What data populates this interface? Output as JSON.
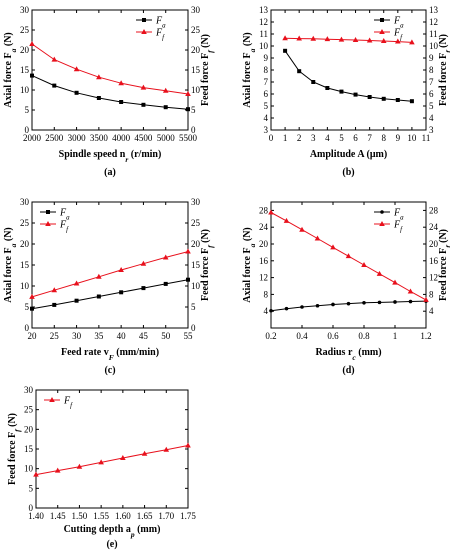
{
  "chart_data": [
    {
      "type": "line",
      "panel_label": "(a)",
      "xlabel": "Spindle speed n",
      "xlabel_sub": "r",
      "xlabel_unit": " (r/min)",
      "ylabel_left": "Axial force F",
      "ylabel_left_sub": "a",
      "ylabel_left_unit": " (N)",
      "ylabel_right": "Feed force F",
      "ylabel_right_sub": "f",
      "ylabel_right_unit": " (N)",
      "xlim": [
        2000,
        5500
      ],
      "xticks": [
        2000,
        2500,
        3000,
        3500,
        4000,
        4500,
        5000,
        5500
      ],
      "ylim_left": [
        0,
        30
      ],
      "yticks_left": [
        0,
        5,
        10,
        15,
        20,
        25,
        30
      ],
      "ylim_right": [
        0,
        30
      ],
      "yticks_right": [
        0,
        5,
        10,
        15,
        20,
        25,
        30
      ],
      "legend_position": "top-right",
      "series": [
        {
          "name": "F",
          "sub": "a",
          "color": "#000000",
          "marker": "square",
          "axis": "left",
          "x": [
            2000,
            2500,
            3000,
            3500,
            4000,
            4500,
            5000,
            5500
          ],
          "y": [
            13.6,
            11.1,
            9.3,
            8.0,
            7.0,
            6.3,
            5.7,
            5.2
          ]
        },
        {
          "name": "F",
          "sub": "f",
          "color": "#e8101c",
          "marker": "triangle",
          "axis": "right",
          "x": [
            2000,
            2500,
            3000,
            3500,
            4000,
            4500,
            5000,
            5500
          ],
          "y": [
            21.5,
            17.6,
            15.2,
            13.2,
            11.7,
            10.6,
            9.8,
            9.0
          ]
        }
      ]
    },
    {
      "type": "line",
      "panel_label": "(b)",
      "xlabel": "Amplitude A",
      "xlabel_sub": "",
      "xlabel_unit": " (μm)",
      "ylabel_left": "Axial force F",
      "ylabel_left_sub": "a",
      "ylabel_left_unit": " (N)",
      "ylabel_right": "Feed force F",
      "ylabel_right_sub": "f",
      "ylabel_right_unit": " (N)",
      "xlim": [
        0,
        11
      ],
      "xticks": [
        0,
        1,
        2,
        3,
        4,
        5,
        6,
        7,
        8,
        9,
        10,
        11
      ],
      "ylim_left": [
        3,
        13
      ],
      "yticks_left": [
        3,
        4,
        5,
        6,
        7,
        8,
        9,
        10,
        11,
        12,
        13
      ],
      "ylim_right": [
        3,
        13
      ],
      "yticks_right": [
        3,
        4,
        5,
        6,
        7,
        8,
        9,
        10,
        11,
        12,
        13
      ],
      "legend_position": "top-right",
      "series": [
        {
          "name": "F",
          "sub": "a",
          "color": "#000000",
          "marker": "square",
          "axis": "left",
          "x": [
            1,
            2,
            3,
            4,
            5,
            6,
            7,
            8,
            9,
            10
          ],
          "y": [
            9.6,
            7.9,
            7.0,
            6.5,
            6.2,
            5.95,
            5.75,
            5.6,
            5.5,
            5.4
          ]
        },
        {
          "name": "F",
          "sub": "f",
          "color": "#e8101c",
          "marker": "triangle",
          "axis": "right",
          "x": [
            1,
            2,
            3,
            4,
            5,
            6,
            7,
            8,
            9,
            10
          ],
          "y": [
            10.65,
            10.62,
            10.6,
            10.57,
            10.53,
            10.5,
            10.46,
            10.42,
            10.37,
            10.3
          ]
        }
      ]
    },
    {
      "type": "line",
      "panel_label": "(c)",
      "xlabel": "Feed rate v",
      "xlabel_sub": "F",
      "xlabel_unit": "  (mm/min)",
      "ylabel_left": "Axial force F",
      "ylabel_left_sub": "a",
      "ylabel_left_unit": " (N)",
      "ylabel_right": "Feed force F",
      "ylabel_right_sub": "f",
      "ylabel_right_unit": " (N)",
      "xlim": [
        20,
        55
      ],
      "xticks": [
        20,
        25,
        30,
        35,
        40,
        45,
        50,
        55
      ],
      "ylim_left": [
        0,
        30
      ],
      "yticks_left": [
        0,
        5,
        10,
        15,
        20,
        25,
        30
      ],
      "ylim_right": [
        0,
        30
      ],
      "yticks_right": [
        0,
        5,
        10,
        15,
        20,
        25,
        30
      ],
      "legend_position": "top-left",
      "series": [
        {
          "name": "F",
          "sub": "a",
          "color": "#000000",
          "marker": "square",
          "axis": "left",
          "x": [
            20,
            25,
            30,
            35,
            40,
            45,
            50,
            55
          ],
          "y": [
            4.6,
            5.5,
            6.5,
            7.5,
            8.5,
            9.5,
            10.5,
            11.5
          ]
        },
        {
          "name": "F",
          "sub": "f",
          "color": "#e8101c",
          "marker": "triangle",
          "axis": "right",
          "x": [
            20,
            25,
            30,
            35,
            40,
            45,
            50,
            55
          ],
          "y": [
            7.4,
            9.0,
            10.6,
            12.2,
            13.8,
            15.3,
            16.8,
            18.2
          ]
        }
      ]
    },
    {
      "type": "line",
      "panel_label": "(d)",
      "xlabel": "Radius r",
      "xlabel_sub": "c",
      "xlabel_unit": " (mm)",
      "ylabel_left": "Axial force F",
      "ylabel_left_sub": "a",
      "ylabel_left_unit": " (N)",
      "ylabel_right": "Feed force F",
      "ylabel_right_sub": "f",
      "ylabel_right_unit": " (N)",
      "xlim": [
        0.2,
        1.2
      ],
      "xticks": [
        0.2,
        0.4,
        0.6,
        0.8,
        1.0,
        1.2
      ],
      "ylim_left": [
        0,
        30
      ],
      "yticks_left": [
        4,
        8,
        12,
        16,
        20,
        24,
        28
      ],
      "ylim_right": [
        0,
        30
      ],
      "yticks_right": [
        4,
        8,
        12,
        16,
        20,
        24,
        28
      ],
      "legend_position": "top-right",
      "series": [
        {
          "name": "F",
          "sub": "a",
          "color": "#000000",
          "marker": "dot",
          "axis": "left",
          "x": [
            0.2,
            0.3,
            0.4,
            0.5,
            0.6,
            0.7,
            0.8,
            0.9,
            1.0,
            1.1,
            1.2
          ],
          "y": [
            4.1,
            4.6,
            5.0,
            5.3,
            5.6,
            5.8,
            6.0,
            6.1,
            6.2,
            6.3,
            6.4
          ]
        },
        {
          "name": "F",
          "sub": "f",
          "color": "#e8101c",
          "marker": "triangle",
          "axis": "right",
          "x": [
            0.2,
            0.3,
            0.4,
            0.5,
            0.6,
            0.7,
            0.8,
            0.9,
            1.0,
            1.1,
            1.2
          ],
          "y": [
            27.5,
            25.5,
            23.4,
            21.3,
            19.2,
            17.1,
            15.0,
            12.9,
            10.8,
            8.7,
            6.7
          ]
        }
      ]
    },
    {
      "type": "line",
      "panel_label": "(e)",
      "xlabel": "Cutting depth a",
      "xlabel_sub": "p",
      "xlabel_unit": "  (mm)",
      "ylabel_left": "Feed force F",
      "ylabel_left_sub": "f",
      "ylabel_left_unit": " (N)",
      "xlim": [
        1.4,
        1.75
      ],
      "xticks": [
        1.4,
        1.45,
        1.5,
        1.55,
        1.6,
        1.65,
        1.7,
        1.75
      ],
      "xtick_labels": [
        "1.40",
        "1.45",
        "1.50",
        "1.55",
        "1.60",
        "1.65",
        "1.70",
        "1.75"
      ],
      "ylim_left": [
        0,
        30
      ],
      "yticks_left": [
        0,
        5,
        10,
        15,
        20,
        25,
        30
      ],
      "legend_position": "top-left",
      "series": [
        {
          "name": "F",
          "sub": "f",
          "color": "#e8101c",
          "marker": "triangle",
          "axis": "left",
          "x": [
            1.4,
            1.45,
            1.5,
            1.55,
            1.6,
            1.65,
            1.7,
            1.75
          ],
          "y": [
            8.5,
            9.5,
            10.5,
            11.6,
            12.7,
            13.8,
            14.8,
            15.9
          ]
        }
      ]
    }
  ]
}
